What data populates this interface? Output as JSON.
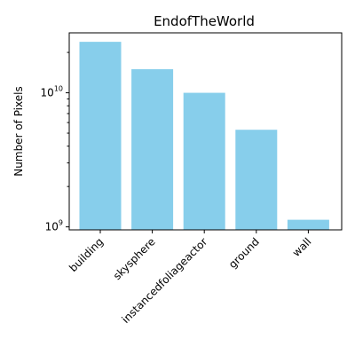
{
  "chart_data": {
    "type": "bar",
    "title": "EndofTheWorld",
    "xlabel": "",
    "ylabel": "Number of Pixels",
    "yscale": "log",
    "ylim": [
      950000000,
      28000000000
    ],
    "categories": [
      "building",
      "skysphere",
      "instancedfoliageactor",
      "ground",
      "wall"
    ],
    "values": [
      24000000000,
      15000000000,
      10000000000,
      5300000000,
      1130000000
    ],
    "bar_color": "#87ceeb",
    "ytick_labels": [
      {
        "base": "10",
        "exp": "9"
      },
      {
        "base": "10",
        "exp": "10"
      }
    ],
    "grid": false,
    "legend": "none"
  }
}
